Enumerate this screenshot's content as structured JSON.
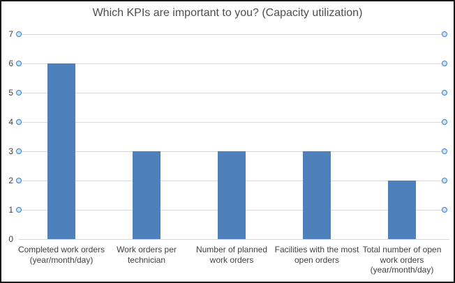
{
  "chart_data": {
    "type": "bar",
    "title": "Which KPIs are important to you? (Capacity utilization)",
    "categories": [
      "Completed work orders (year/month/day)",
      "Work orders per technician",
      "Number of planned work orders",
      "Facilities with the most open orders",
      "Total number of open work orders (year/month/day)"
    ],
    "categories_wrapped": [
      "Completed work orders\n(year/month/day)",
      "Work orders per\ntechnician",
      "Number of planned\nwork orders",
      "Facilities with the most\nopen orders",
      "Total number of open\nwork orders\n(year/month/day)"
    ],
    "values": [
      6,
      3,
      3,
      3,
      2
    ],
    "ylim": [
      0,
      7
    ],
    "yticks": [
      0,
      1,
      2,
      3,
      4,
      5,
      6,
      7
    ],
    "xlabel": "",
    "ylabel": "",
    "grid": true,
    "legend_position": "none",
    "colors": {
      "bar": "#4e80bc",
      "gridline": "#d9d9d9",
      "axis_line": "#d6d6d6",
      "tick_marker_border": "#2f7ed8",
      "tick_marker_fill": "#cfe3f6",
      "title_text": "#4d4d4d",
      "axis_text": "#404040"
    }
  }
}
